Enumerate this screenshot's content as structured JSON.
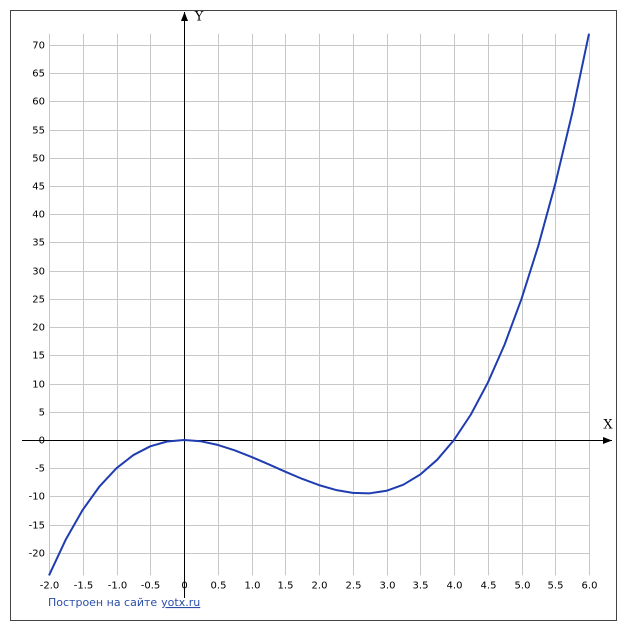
{
  "chart_data": {
    "type": "line",
    "x_label": "X",
    "y_label": "Y",
    "x": [
      -2,
      -1.75,
      -1.5,
      -1.25,
      -1,
      -0.75,
      -0.5,
      -0.25,
      0,
      0.25,
      0.5,
      0.75,
      1,
      1.25,
      1.5,
      1.75,
      2,
      2.25,
      2.5,
      2.75,
      3,
      3.25,
      3.5,
      3.75,
      4,
      4.25,
      4.5,
      4.75,
      5,
      5.25,
      5.5,
      5.75,
      6
    ],
    "series": [
      {
        "color": "#1f3db0",
        "values": [
          -24,
          -17.609,
          -12.375,
          -8.203,
          -5,
          -2.672,
          -1.125,
          -0.266,
          0,
          -0.234,
          -0.875,
          -1.828,
          -3,
          -4.297,
          -5.625,
          -6.891,
          -8,
          -8.859,
          -9.375,
          -9.453,
          -9,
          -7.922,
          -6.125,
          -3.516,
          0,
          4.516,
          10.125,
          16.922,
          25,
          34.453,
          45.375,
          57.859,
          72
        ]
      }
    ],
    "xlim": [
      -2,
      6
    ],
    "ylim": [
      -24,
      72
    ],
    "xticks": [
      {
        "value": -2,
        "label": "-2.0"
      },
      -1.5,
      {
        "value": -1,
        "label": "-1.0"
      },
      -0.5,
      0,
      0.5,
      {
        "value": 1,
        "label": "1.0"
      },
      1.5,
      {
        "value": 2,
        "label": "2.0"
      },
      2.5,
      {
        "value": 3,
        "label": "3.0"
      },
      3.5,
      {
        "value": 4,
        "label": "4.0"
      },
      4.5,
      {
        "value": 5,
        "label": "5.0"
      },
      5.5,
      {
        "value": 6,
        "label": "6.0"
      }
    ],
    "yticks": [
      -20,
      -15,
      -10,
      -5,
      0,
      5,
      10,
      15,
      20,
      25,
      30,
      35,
      40,
      45,
      50,
      55,
      60,
      65,
      70
    ],
    "grid": true
  },
  "footer": {
    "prefix": "Построен на сайте",
    "link": "yotx.ru"
  }
}
